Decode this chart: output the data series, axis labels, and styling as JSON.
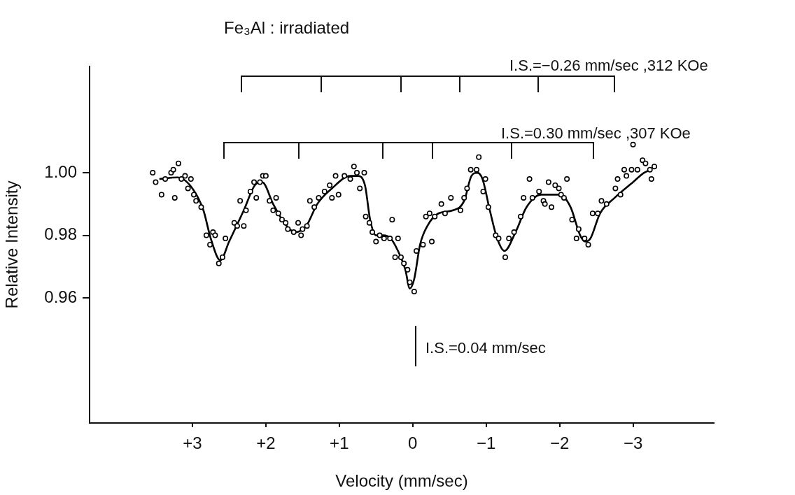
{
  "chart_data": {
    "type": "scatter",
    "title": "Fe₃Al : irradiated",
    "xlabel": "Velocity (mm/sec)",
    "ylabel": "Relative Intensity",
    "annotations": [
      "I.S.=−0.26 mm/sec ,312 KOe",
      "I.S.=0.30 mm/sec ,307 KOe",
      "I.S.=0.04 mm/sec"
    ],
    "xlim": [
      4.4,
      -4.1
    ],
    "xticks": [
      {
        "value": 3,
        "label": "+3"
      },
      {
        "value": 2,
        "label": "+2"
      },
      {
        "value": 1,
        "label": "+1"
      },
      0,
      {
        "value": -1,
        "label": "−1"
      },
      {
        "value": -2,
        "label": "−2"
      },
      {
        "value": -3,
        "label": "−3"
      }
    ],
    "ylim": [
      0.92,
      1.034
    ],
    "yticks": [
      {
        "value": 0.96,
        "label": "0.96"
      },
      {
        "value": 0.98,
        "label": "0.98"
      },
      {
        "value": 1.0,
        "label": "1.00"
      }
    ],
    "marker": "circle",
    "series": [
      {
        "type": "scatter",
        "color": "#000000",
        "x": [
          3.54,
          3.5,
          3.42,
          3.37,
          3.29,
          3.26,
          3.19,
          3.24,
          3.15,
          3.1,
          3.02,
          3.06,
          2.98,
          2.95,
          2.88,
          2.81,
          2.72,
          2.69,
          2.76,
          2.59,
          2.64,
          2.55,
          2.43,
          2.39,
          2.3,
          2.35,
          2.27,
          2.21,
          2.16,
          2.13,
          2.08,
          2.04,
          2.0,
          1.95,
          1.86,
          1.9,
          1.83,
          1.78,
          1.73,
          1.7,
          1.62,
          1.56,
          1.52,
          1.5,
          1.44,
          1.4,
          1.34,
          1.28,
          1.2,
          1.13,
          1.1,
          1.05,
          1.01,
          0.93,
          0.85,
          0.8,
          0.76,
          0.66,
          0.72,
          0.64,
          0.59,
          0.55,
          0.5,
          0.45,
          0.39,
          0.31,
          0.28,
          0.2,
          0.24,
          0.16,
          0.12,
          0.07,
          0.04,
          -0.02,
          -0.05,
          -0.14,
          -0.26,
          -0.18,
          -0.23,
          -0.3,
          -0.39,
          -0.44,
          -0.52,
          -0.65,
          -0.7,
          -0.74,
          -0.79,
          -0.87,
          -0.9,
          -0.99,
          -0.96,
          -1.03,
          -1.13,
          -1.17,
          -1.26,
          -1.31,
          -1.38,
          -1.47,
          -1.51,
          -1.63,
          -1.59,
          -1.72,
          -1.78,
          -1.8,
          -1.85,
          -1.89,
          -1.94,
          -1.99,
          -2.1,
          -2.02,
          -2.06,
          -2.17,
          -2.26,
          -2.23,
          -2.34,
          -2.39,
          -2.45,
          -2.52,
          -2.57,
          -2.64,
          -2.76,
          -2.79,
          -2.83,
          -2.88,
          -2.91,
          -2.98,
          -3.0,
          -3.06,
          -3.13,
          -3.17,
          -3.23,
          -3.29,
          -3.25
        ],
        "values": [
          1.0,
          0.997,
          0.993,
          0.998,
          1.0,
          1.001,
          1.003,
          0.992,
          0.998,
          0.999,
          0.998,
          0.995,
          0.993,
          0.991,
          0.989,
          0.98,
          0.981,
          0.98,
          0.977,
          0.973,
          0.971,
          0.979,
          0.984,
          0.983,
          0.983,
          0.991,
          0.988,
          0.994,
          0.997,
          0.992,
          0.997,
          0.999,
          0.999,
          0.991,
          0.992,
          0.988,
          0.987,
          0.985,
          0.984,
          0.982,
          0.981,
          0.984,
          0.98,
          0.982,
          0.983,
          0.991,
          0.989,
          0.992,
          0.994,
          0.996,
          0.992,
          0.999,
          0.993,
          0.999,
          0.998,
          1.002,
          1.0,
          1.0,
          0.995,
          0.986,
          0.984,
          0.981,
          0.978,
          0.98,
          0.979,
          0.979,
          0.985,
          0.979,
          0.973,
          0.973,
          0.971,
          0.969,
          0.965,
          0.962,
          0.975,
          0.977,
          0.978,
          0.986,
          0.987,
          0.986,
          0.99,
          0.987,
          0.992,
          0.988,
          0.992,
          0.995,
          1.001,
          1.001,
          1.005,
          0.998,
          0.994,
          0.989,
          0.98,
          0.979,
          0.973,
          0.979,
          0.981,
          0.986,
          0.992,
          0.992,
          0.998,
          0.994,
          0.991,
          0.99,
          0.997,
          0.989,
          0.996,
          0.995,
          0.998,
          0.993,
          0.992,
          0.985,
          0.982,
          0.979,
          0.979,
          0.977,
          0.987,
          0.987,
          0.991,
          0.99,
          0.995,
          0.998,
          0.993,
          1.001,
          0.999,
          1.001,
          1.009,
          1.001,
          1.004,
          1.003,
          1.001,
          1.002,
          0.998
        ]
      },
      {
        "type": "line",
        "color": "#000000",
        "marker": "none",
        "x": [
          3.45,
          3.2,
          3.0,
          2.85,
          2.75,
          2.62,
          2.5,
          2.3,
          2.15,
          2.05,
          1.9,
          1.75,
          1.6,
          1.45,
          1.3,
          1.1,
          0.85,
          0.75,
          0.65,
          0.58,
          0.5,
          0.4,
          0.3,
          0.2,
          0.1,
          0.04,
          -0.02,
          -0.1,
          -0.2,
          -0.35,
          -0.55,
          -0.7,
          -0.8,
          -0.88,
          -0.95,
          -1.05,
          -1.15,
          -1.25,
          -1.4,
          -1.55,
          -1.75,
          -2.0,
          -2.15,
          -2.28,
          -2.35,
          -2.42,
          -2.55,
          -2.75,
          -3.0,
          -3.15,
          -3.25
        ],
        "values": [
          0.998,
          0.9985,
          0.995,
          0.988,
          0.979,
          0.972,
          0.978,
          0.988,
          0.996,
          0.997,
          0.99,
          0.984,
          0.981,
          0.983,
          0.99,
          0.995,
          0.999,
          0.999,
          0.996,
          0.985,
          0.98,
          0.98,
          0.979,
          0.975,
          0.969,
          0.963,
          0.966,
          0.977,
          0.983,
          0.987,
          0.988,
          0.991,
          0.999,
          1.0,
          0.998,
          0.988,
          0.979,
          0.975,
          0.981,
          0.989,
          0.993,
          0.993,
          0.989,
          0.98,
          0.978,
          0.979,
          0.987,
          0.992,
          0.997,
          1.0,
          1.001
        ]
      }
    ]
  }
}
